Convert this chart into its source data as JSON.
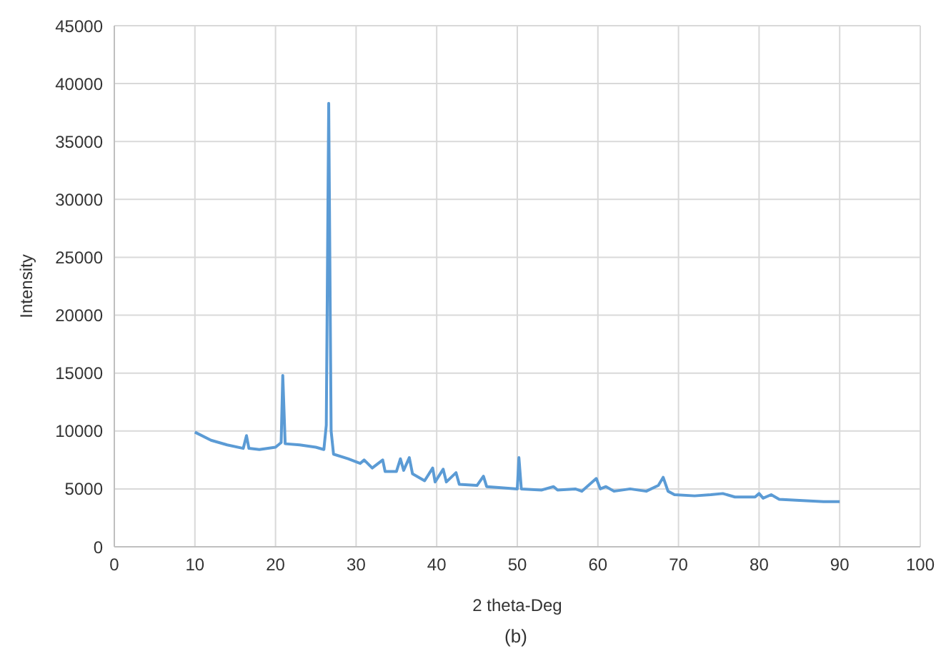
{
  "chart_data": {
    "type": "line",
    "xlabel": "2 theta-Deg",
    "ylabel": "Intensity",
    "annotations": [
      "(b)"
    ],
    "xlim": [
      0,
      100
    ],
    "xticks": [
      0,
      10,
      20,
      30,
      40,
      50,
      60,
      70,
      80,
      90,
      100
    ],
    "ylim": [
      0,
      45000
    ],
    "yticks": [
      0,
      5000,
      10000,
      15000,
      20000,
      25000,
      30000,
      35000,
      40000,
      45000
    ],
    "grid": true,
    "legend": false,
    "marker": "none",
    "line_style": "solid",
    "series": [
      {
        "color": "#5b9bd5",
        "x": [
          10,
          12,
          14,
          16,
          16.4,
          16.7,
          18,
          20,
          20.7,
          20.9,
          21.2,
          23,
          25,
          26,
          26.3,
          26.6,
          26.9,
          27.2,
          29,
          30.5,
          31,
          32,
          33.3,
          33.6,
          35,
          35.5,
          35.9,
          36.6,
          37,
          38.5,
          39.5,
          39.8,
          40.8,
          41.2,
          42.4,
          42.8,
          45,
          45.8,
          46.2,
          48,
          50,
          50.2,
          50.5,
          53,
          54.5,
          55,
          57.2,
          58,
          59.8,
          60.3,
          61,
          62,
          64,
          66,
          67.5,
          68.1,
          68.7,
          69.5,
          72,
          74,
          75.5,
          77,
          79.5,
          80,
          80.5,
          81.5,
          82.5,
          85,
          88,
          90
        ],
        "values": [
          9900,
          9200,
          8800,
          8500,
          9600,
          8500,
          8400,
          8600,
          9000,
          14800,
          8900,
          8800,
          8600,
          8400,
          10500,
          38300,
          10000,
          8000,
          7600,
          7200,
          7500,
          6800,
          7500,
          6500,
          6500,
          7600,
          6600,
          7700,
          6300,
          5700,
          6800,
          5600,
          6700,
          5600,
          6400,
          5400,
          5300,
          6100,
          5200,
          5100,
          5000,
          7700,
          5000,
          4900,
          5200,
          4900,
          5000,
          4800,
          5900,
          5000,
          5200,
          4800,
          5000,
          4800,
          5300,
          6000,
          4800,
          4500,
          4400,
          4500,
          4600,
          4300,
          4300,
          4600,
          4200,
          4500,
          4100,
          4000,
          3900,
          3900
        ]
      }
    ]
  }
}
